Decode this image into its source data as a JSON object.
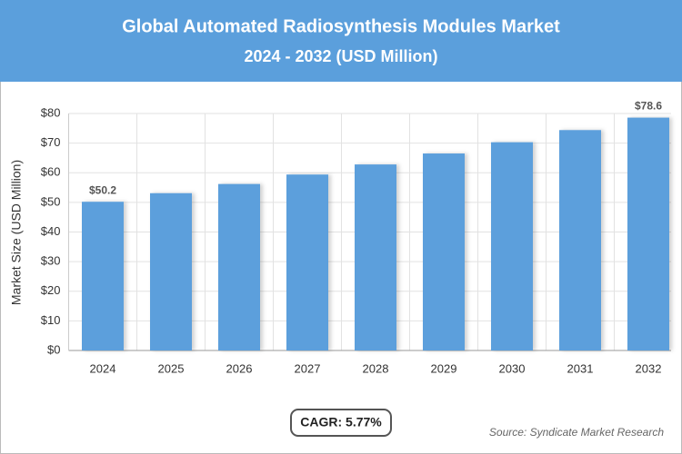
{
  "chart_data": {
    "type": "bar",
    "title": "Global Automated Radiosynthesis Modules Market",
    "subtitle": "2024 - 2032 (USD Million)",
    "y_label": "Market Size (USD Million)",
    "categories": [
      "2024",
      "2025",
      "2026",
      "2027",
      "2028",
      "2029",
      "2030",
      "2031",
      "2032"
    ],
    "values": [
      50.2,
      53.1,
      56.2,
      59.4,
      62.8,
      66.5,
      70.3,
      74.4,
      78.6
    ],
    "value_labels": [
      "$50.2",
      null,
      null,
      null,
      null,
      null,
      null,
      null,
      "$78.6"
    ],
    "color": "#5b9fdc",
    "ylim": [
      0,
      80
    ],
    "yticks": [
      {
        "value": 0,
        "label": "$0"
      },
      {
        "value": 10,
        "label": "$10"
      },
      {
        "value": 20,
        "label": "$20"
      },
      {
        "value": 30,
        "label": "$30"
      },
      {
        "value": 40,
        "label": "$40"
      },
      {
        "value": 50,
        "label": "$50"
      },
      {
        "value": 60,
        "label": "$60"
      },
      {
        "value": 70,
        "label": "$70"
      },
      {
        "value": 80,
        "label": "$80"
      }
    ],
    "grid": true,
    "annotation": "CAGR: 5.77%",
    "source": "Source: Syndicate Market Research"
  }
}
